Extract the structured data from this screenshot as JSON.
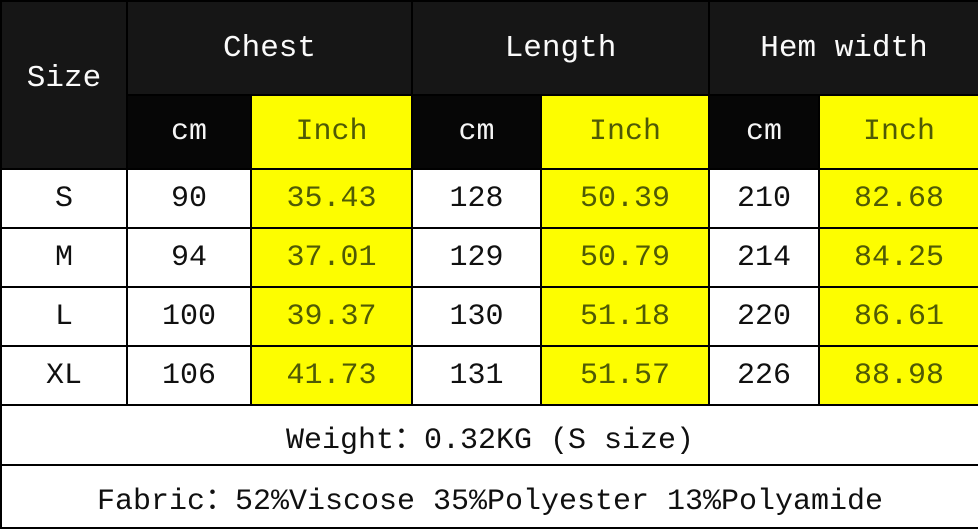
{
  "chart_data": {
    "type": "table",
    "columns": [
      "Size",
      "Chest (cm)",
      "Chest (Inch)",
      "Length (cm)",
      "Length (Inch)",
      "Hem width (cm)",
      "Hem width (Inch)"
    ],
    "rows": [
      [
        "S",
        90,
        35.43,
        128,
        50.39,
        210,
        82.68
      ],
      [
        "M",
        94,
        37.01,
        129,
        50.79,
        214,
        84.25
      ],
      [
        "L",
        100,
        39.37,
        130,
        51.18,
        220,
        86.61
      ],
      [
        "XL",
        106,
        41.73,
        131,
        51.57,
        226,
        88.98
      ]
    ],
    "notes": [
      "Weight：0.32KG (S size)",
      "Fabric：52%Viscose 35%Polyester 13%Polyamide"
    ],
    "layout_hints": {
      "highlighted_columns": [
        "Chest (Inch)",
        "Length (Inch)",
        "Hem width (Inch)"
      ],
      "grid": "on"
    }
  },
  "table": {
    "size_header": "Size",
    "group_labels": [
      "Chest",
      "Length",
      "Hem width"
    ],
    "unit_cm": "cm",
    "unit_inch": "Inch",
    "rows": [
      {
        "size": "S",
        "chest_cm": "90",
        "chest_inch": "35.43",
        "length_cm": "128",
        "length_inch": "50.39",
        "hem_cm": "210",
        "hem_inch": "82.68"
      },
      {
        "size": "M",
        "chest_cm": "94",
        "chest_inch": "37.01",
        "length_cm": "129",
        "length_inch": "50.79",
        "hem_cm": "214",
        "hem_inch": "84.25"
      },
      {
        "size": "L",
        "chest_cm": "100",
        "chest_inch": "39.37",
        "length_cm": "130",
        "length_inch": "51.18",
        "hem_cm": "220",
        "hem_inch": "86.61"
      },
      {
        "size": "XL",
        "chest_cm": "106",
        "chest_inch": "41.73",
        "length_cm": "131",
        "length_inch": "51.57",
        "hem_cm": "226",
        "hem_inch": "88.98"
      }
    ],
    "weight_note": "Weight：0.32KG (S size)",
    "fabric_note": "Fabric：52%Viscose 35%Polyester 13%Polyamide"
  },
  "colors": {
    "header_bg": "#161616",
    "subheader_bg": "#060606",
    "highlight_bg": "#fdfd00",
    "highlight_text": "#4f5a05",
    "header_text": "#fafafa",
    "body_text": "#101010",
    "grid_line": "#000000"
  }
}
